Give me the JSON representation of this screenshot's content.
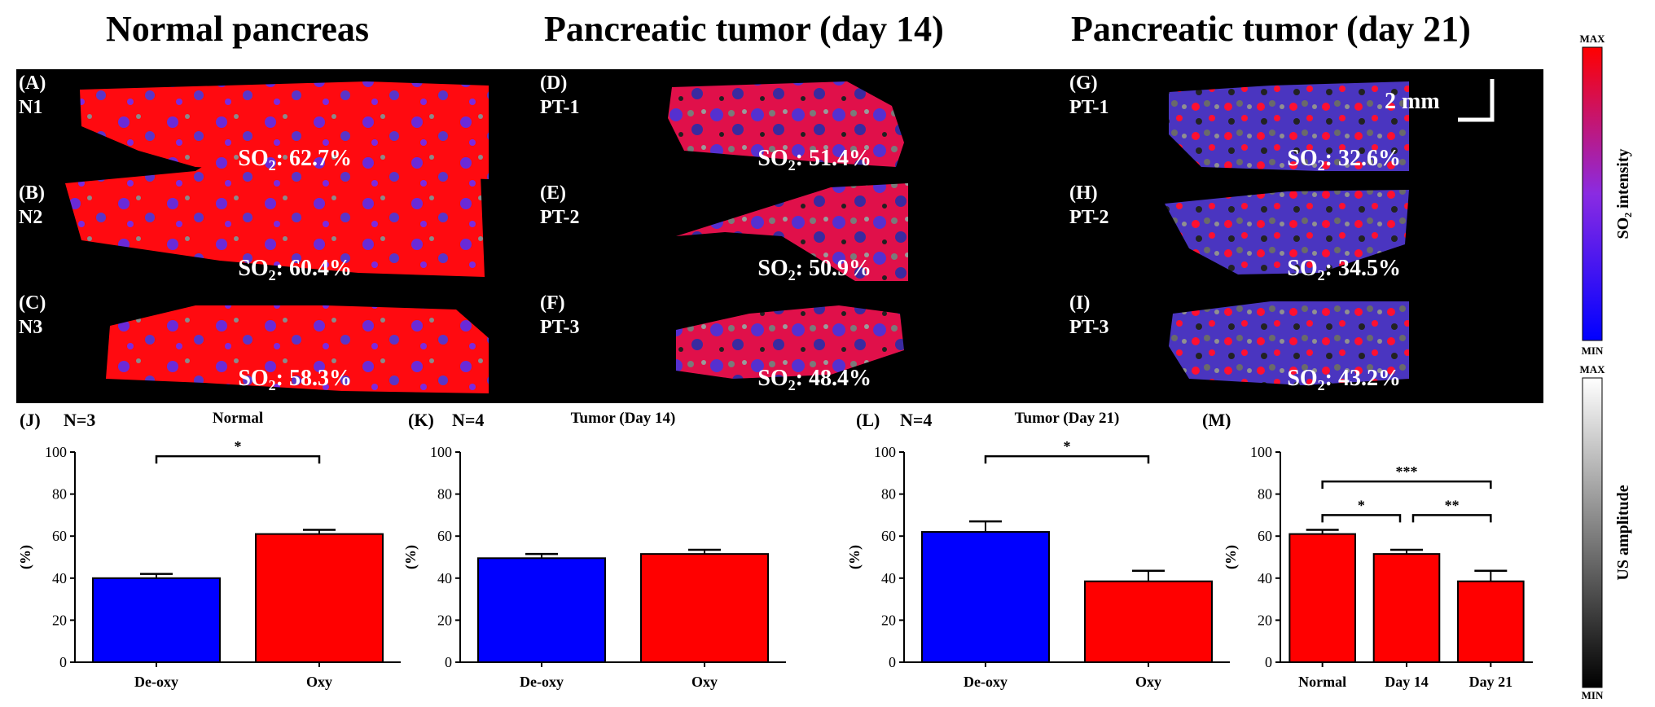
{
  "titles": {
    "normal": "Normal pancreas",
    "day14": "Pancreatic tumor (day 14)",
    "day21": "Pancreatic tumor (day 21)"
  },
  "images": {
    "scale_bar": "2 mm",
    "panels": [
      {
        "letter": "(A)",
        "sample": "N1",
        "so2": "62.7%"
      },
      {
        "letter": "(B)",
        "sample": "N2",
        "so2": "60.4%"
      },
      {
        "letter": "(C)",
        "sample": "N3",
        "so2": "58.3%"
      },
      {
        "letter": "(D)",
        "sample": "PT-1",
        "so2": "51.4%"
      },
      {
        "letter": "(E)",
        "sample": "PT-2",
        "so2": "50.9%"
      },
      {
        "letter": "(F)",
        "sample": "PT-3",
        "so2": "48.4%"
      },
      {
        "letter": "(G)",
        "sample": "PT-1",
        "so2": "32.6%"
      },
      {
        "letter": "(H)",
        "sample": "PT-2",
        "so2": "34.5%"
      },
      {
        "letter": "(I)",
        "sample": "PT-3",
        "so2": "43.2%"
      }
    ]
  },
  "colorbars": {
    "so2": {
      "max": "MAX",
      "min": "MIN",
      "label": "SO₂ intensity",
      "colors": [
        "#ff0000",
        "#8a2be2",
        "#0000ff"
      ]
    },
    "us": {
      "max": "MAX",
      "min": "MIN",
      "label": "US amplitude",
      "colors": [
        "#ffffff",
        "#000000"
      ]
    }
  },
  "chart_data": [
    {
      "type": "bar",
      "panel": "(J)",
      "n": "N=3",
      "title": "Normal",
      "ylabel": "(%)",
      "ylim": [
        0,
        100
      ],
      "yticks": [
        "0",
        "20",
        "40",
        "60",
        "80",
        "100"
      ],
      "categories": [
        "De-oxy",
        "Oxy"
      ],
      "values": [
        40,
        61
      ],
      "errors": [
        2,
        2
      ],
      "colors": [
        "#0000ff",
        "#ff0000"
      ],
      "significance": [
        {
          "from": 0,
          "to": 1,
          "label": "*"
        }
      ]
    },
    {
      "type": "bar",
      "panel": "(K)",
      "n": "N=4",
      "title": "Tumor (Day 14)",
      "ylabel": "(%)",
      "ylim": [
        0,
        100
      ],
      "yticks": [
        "0",
        "20",
        "40",
        "60",
        "80",
        "100"
      ],
      "categories": [
        "De-oxy",
        "Oxy"
      ],
      "values": [
        49.5,
        51.5
      ],
      "errors": [
        2,
        2
      ],
      "colors": [
        "#0000ff",
        "#ff0000"
      ],
      "significance": []
    },
    {
      "type": "bar",
      "panel": "(L)",
      "n": "N=4",
      "title": "Tumor (Day 21)",
      "ylabel": "(%)",
      "ylim": [
        0,
        100
      ],
      "yticks": [
        "0",
        "20",
        "40",
        "60",
        "80",
        "100"
      ],
      "categories": [
        "De-oxy",
        "Oxy"
      ],
      "values": [
        62,
        38.5
      ],
      "errors": [
        5,
        5
      ],
      "colors": [
        "#0000ff",
        "#ff0000"
      ],
      "significance": [
        {
          "from": 0,
          "to": 1,
          "label": "*"
        }
      ]
    },
    {
      "type": "bar",
      "panel": "(M)",
      "n": "",
      "title": "",
      "ylabel": "(%)",
      "ylim": [
        0,
        100
      ],
      "yticks": [
        "0",
        "20",
        "40",
        "60",
        "80",
        "100"
      ],
      "categories": [
        "Normal",
        "Day 14",
        "Day 21"
      ],
      "values": [
        61,
        51.5,
        38.5
      ],
      "errors": [
        2,
        2,
        5
      ],
      "colors": [
        "#ff0000",
        "#ff0000",
        "#ff0000"
      ],
      "significance": [
        {
          "from": 0,
          "to": 2,
          "label": "***"
        },
        {
          "from": 0,
          "to": 1,
          "label": "*"
        },
        {
          "from": 1,
          "to": 2,
          "label": "**"
        }
      ]
    }
  ]
}
